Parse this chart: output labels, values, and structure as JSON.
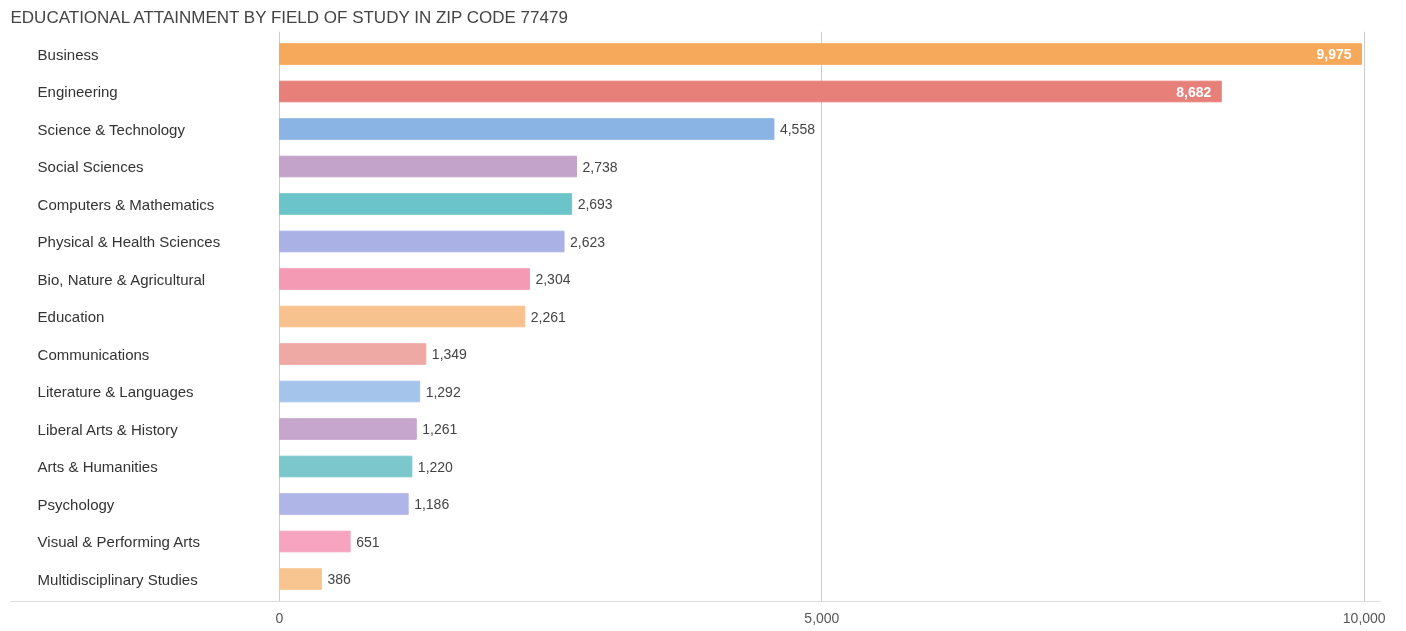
{
  "chart_data": {
    "type": "bar",
    "orientation": "horizontal",
    "title": "EDUCATIONAL ATTAINMENT BY FIELD OF STUDY IN ZIP CODE 77479",
    "categories": [
      "Business",
      "Engineering",
      "Science & Technology",
      "Social Sciences",
      "Computers & Mathematics",
      "Physical & Health Sciences",
      "Bio, Nature & Agricultural",
      "Education",
      "Communications",
      "Literature & Languages",
      "Liberal Arts & History",
      "Arts & Humanities",
      "Psychology",
      "Visual & Performing Arts",
      "Multidisciplinary Studies"
    ],
    "values": [
      9975,
      8682,
      4558,
      2738,
      2693,
      2623,
      2304,
      2261,
      1349,
      1292,
      1261,
      1220,
      1186,
      651,
      386
    ],
    "colors": [
      "#f6a95a",
      "#e8807a",
      "#8ab4e3",
      "#c4a3cb",
      "#6cc4cb",
      "#a9b1e5",
      "#f49ab5",
      "#f8c28e",
      "#eea9a5",
      "#a4c4ec",
      "#c6a6cc",
      "#7bc7cc",
      "#b0b5e8",
      "#f6a4bf",
      "#f8c590"
    ],
    "xlim": [
      -2480,
      10150
    ],
    "xticks": [
      0,
      {
        "value": 5000,
        "label": "5,000"
      },
      {
        "value": 10000,
        "label": "10,000"
      }
    ],
    "value_labels": [
      "9,975",
      "8,682",
      "4,558",
      "2,738",
      "2,693",
      "2,623",
      "2,304",
      "2,261",
      "1,349",
      "1,292",
      "1,261",
      "1,220",
      "1,186",
      "651",
      "386"
    ],
    "grid": "x"
  }
}
